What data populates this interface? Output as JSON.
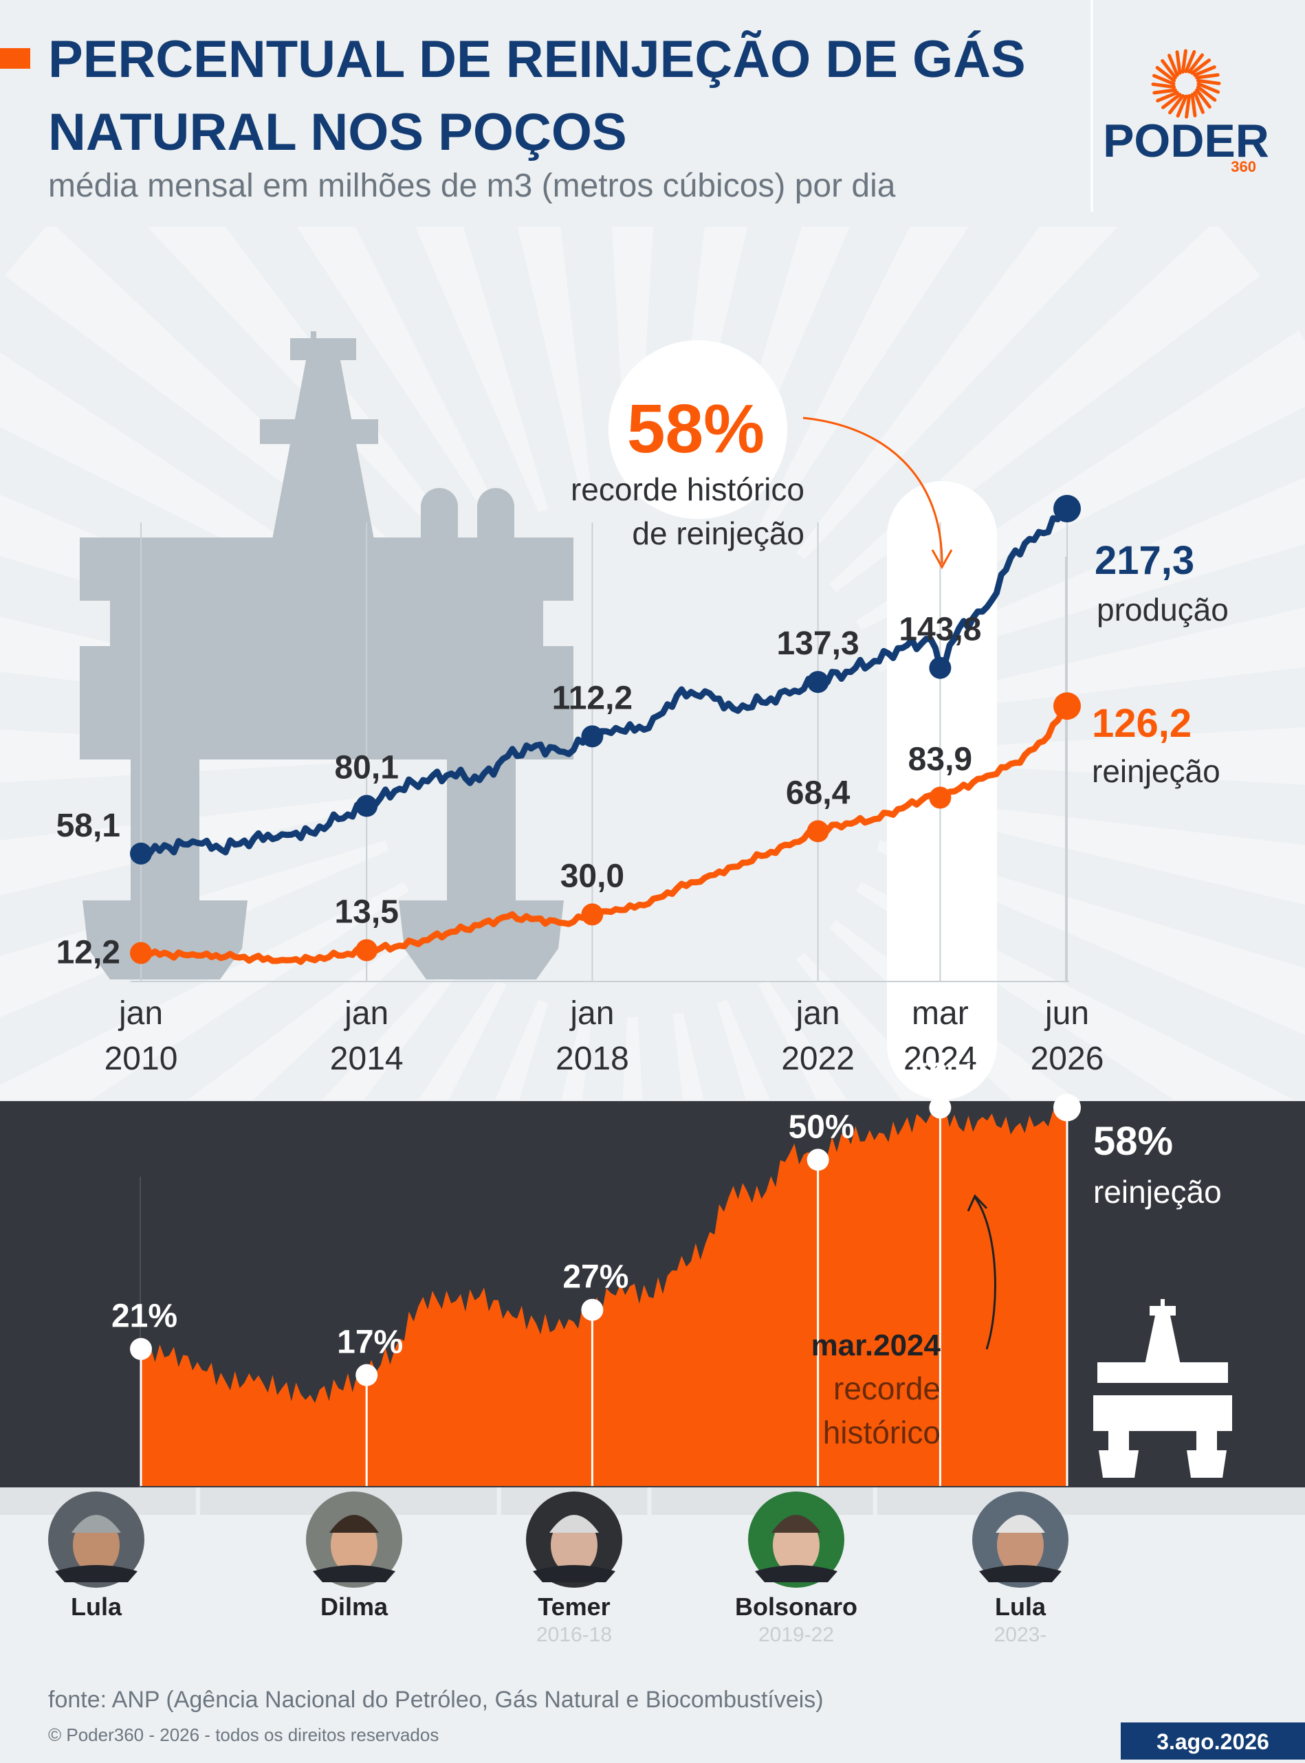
{
  "header": {
    "title_line1": "PERCENTUAL DE REINJEÇÃO DE GÁS",
    "title_line2": "NATURAL NOS POÇOS",
    "subtitle": "média mensal em milhões de m3 (metros cúbicos) por dia"
  },
  "logo": {
    "name": "PODER",
    "number": "360"
  },
  "colors": {
    "navy": "#123c73",
    "orange": "#fa5a08",
    "dark_panel": "#34373d",
    "gray_art": "#b7c0c6",
    "text_dark": "#2d2f33",
    "text_gray": "#6c7680"
  },
  "callout": {
    "value": "58%",
    "line1": "recorde histórico",
    "line2": "de reinjeção"
  },
  "chart_data": [
    {
      "type": "line",
      "title": "média mensal em milhões de m3 (metros cúbicos) por dia",
      "x_ticks": [
        {
          "month": "jan",
          "year": "2010"
        },
        {
          "month": "jan",
          "year": "2014"
        },
        {
          "month": "jan",
          "year": "2018"
        },
        {
          "month": "jan",
          "year": "2022"
        },
        {
          "month": "mar",
          "year": "2024"
        },
        {
          "month": "jun",
          "year": "2026"
        }
      ],
      "x_range": [
        "2010-01",
        "2026-06"
      ],
      "ylim": [
        0,
        230
      ],
      "grid": "vertical lines at labeled dates",
      "series": [
        {
          "name": "produção",
          "color": "#123c73",
          "labeled_points": [
            {
              "x": "2010-01",
              "y": 58.1,
              "label": "58,1"
            },
            {
              "x": "2014-01",
              "y": 80.1,
              "label": "80,1"
            },
            {
              "x": "2018-01",
              "y": 112.2,
              "label": "112,2"
            },
            {
              "x": "2022-01",
              "y": 137.3,
              "label": "137,3"
            },
            {
              "x": "2024-03",
              "y": 143.8,
              "label": "143,8"
            },
            {
              "x": "2026-06",
              "y": 217.3,
              "label": "217,3"
            }
          ],
          "approx_monthly": [
            {
              "x": "2010-01",
              "y": 58.1
            },
            {
              "x": "2010-07",
              "y": 61
            },
            {
              "x": "2011-01",
              "y": 63
            },
            {
              "x": "2011-06",
              "y": 60
            },
            {
              "x": "2012-01",
              "y": 65
            },
            {
              "x": "2012-07",
              "y": 67
            },
            {
              "x": "2013-01",
              "y": 68
            },
            {
              "x": "2013-07",
              "y": 74
            },
            {
              "x": "2014-01",
              "y": 80.1
            },
            {
              "x": "2014-07",
              "y": 87
            },
            {
              "x": "2015-01",
              "y": 92
            },
            {
              "x": "2015-07",
              "y": 95
            },
            {
              "x": "2016-01",
              "y": 92
            },
            {
              "x": "2016-07",
              "y": 103
            },
            {
              "x": "2017-01",
              "y": 108
            },
            {
              "x": "2017-07",
              "y": 105
            },
            {
              "x": "2018-01",
              "y": 112.2
            },
            {
              "x": "2018-07",
              "y": 115
            },
            {
              "x": "2019-01",
              "y": 116
            },
            {
              "x": "2019-07",
              "y": 131
            },
            {
              "x": "2020-01",
              "y": 133
            },
            {
              "x": "2020-07",
              "y": 125
            },
            {
              "x": "2021-01",
              "y": 128
            },
            {
              "x": "2021-07",
              "y": 132
            },
            {
              "x": "2022-01",
              "y": 137.3
            },
            {
              "x": "2022-07",
              "y": 142
            },
            {
              "x": "2023-01",
              "y": 147
            },
            {
              "x": "2023-07",
              "y": 153
            },
            {
              "x": "2024-01",
              "y": 157
            },
            {
              "x": "2024-03",
              "y": 143.8
            },
            {
              "x": "2024-07",
              "y": 162
            },
            {
              "x": "2025-01",
              "y": 172
            },
            {
              "x": "2025-07",
              "y": 198
            },
            {
              "x": "2026-01",
              "y": 206
            },
            {
              "x": "2026-06",
              "y": 217.3
            }
          ]
        },
        {
          "name": "reinjeção",
          "color": "#fa5a08",
          "labeled_points": [
            {
              "x": "2010-01",
              "y": 12.2,
              "label": "12,2"
            },
            {
              "x": "2014-01",
              "y": 13.5,
              "label": "13,5"
            },
            {
              "x": "2018-01",
              "y": 30.0,
              "label": "30,0"
            },
            {
              "x": "2022-01",
              "y": 68.4,
              "label": "68,4"
            },
            {
              "x": "2024-03",
              "y": 83.9,
              "label": "83,9"
            },
            {
              "x": "2026-06",
              "y": 126.2,
              "label": "126,2"
            }
          ],
          "approx_monthly": [
            {
              "x": "2010-01",
              "y": 12.2
            },
            {
              "x": "2010-07",
              "y": 11.5
            },
            {
              "x": "2011-01",
              "y": 11
            },
            {
              "x": "2011-07",
              "y": 10.5
            },
            {
              "x": "2012-01",
              "y": 10
            },
            {
              "x": "2012-07",
              "y": 9
            },
            {
              "x": "2013-01",
              "y": 9.5
            },
            {
              "x": "2013-07",
              "y": 11
            },
            {
              "x": "2014-01",
              "y": 13.5
            },
            {
              "x": "2014-07",
              "y": 15
            },
            {
              "x": "2015-01",
              "y": 18
            },
            {
              "x": "2015-07",
              "y": 22
            },
            {
              "x": "2016-01",
              "y": 25
            },
            {
              "x": "2016-07",
              "y": 29
            },
            {
              "x": "2017-01",
              "y": 28
            },
            {
              "x": "2017-07",
              "y": 26
            },
            {
              "x": "2018-01",
              "y": 30.0
            },
            {
              "x": "2018-07",
              "y": 32
            },
            {
              "x": "2019-01",
              "y": 35
            },
            {
              "x": "2019-07",
              "y": 42
            },
            {
              "x": "2020-01",
              "y": 47
            },
            {
              "x": "2020-07",
              "y": 52
            },
            {
              "x": "2021-01",
              "y": 57
            },
            {
              "x": "2021-07",
              "y": 62
            },
            {
              "x": "2022-01",
              "y": 68.4
            },
            {
              "x": "2022-07",
              "y": 72
            },
            {
              "x": "2023-01",
              "y": 74
            },
            {
              "x": "2023-07",
              "y": 79
            },
            {
              "x": "2024-01",
              "y": 85
            },
            {
              "x": "2024-03",
              "y": 83.9
            },
            {
              "x": "2024-07",
              "y": 88
            },
            {
              "x": "2025-01",
              "y": 94
            },
            {
              "x": "2025-07",
              "y": 100
            },
            {
              "x": "2026-01",
              "y": 110
            },
            {
              "x": "2026-06",
              "y": 126.2
            }
          ]
        }
      ],
      "end_labels": {
        "produção": {
          "value": "217,3",
          "name": "produção"
        },
        "reinjeção": {
          "value": "126,2",
          "name": "reinjeção"
        }
      },
      "highlight": "mar 2024"
    },
    {
      "type": "area",
      "series_name": "reinjeção",
      "unit": "%",
      "ylim": [
        0,
        65
      ],
      "labeled_points": [
        {
          "x": "2010-01",
          "y": 21,
          "label": "21%"
        },
        {
          "x": "2014-01",
          "y": 17,
          "label": "17%"
        },
        {
          "x": "2018-01",
          "y": 27,
          "label": "27%"
        },
        {
          "x": "2022-01",
          "y": 50,
          "label": "50%"
        },
        {
          "x": "2024-03",
          "y": 58,
          "label": "58%"
        },
        {
          "x": "2026-06",
          "y": 58,
          "label": "58%"
        }
      ],
      "approx_monthly": [
        {
          "x": "2010-01",
          "y": 21
        },
        {
          "x": "2010-07",
          "y": 20
        },
        {
          "x": "2011-01",
          "y": 19
        },
        {
          "x": "2011-07",
          "y": 16
        },
        {
          "x": "2012-01",
          "y": 16
        },
        {
          "x": "2012-07",
          "y": 15
        },
        {
          "x": "2013-01",
          "y": 14
        },
        {
          "x": "2013-07",
          "y": 15
        },
        {
          "x": "2014-01",
          "y": 17
        },
        {
          "x": "2014-07",
          "y": 21
        },
        {
          "x": "2015-01",
          "y": 29
        },
        {
          "x": "2015-07",
          "y": 28
        },
        {
          "x": "2016-01",
          "y": 29
        },
        {
          "x": "2016-07",
          "y": 27
        },
        {
          "x": "2017-01",
          "y": 25
        },
        {
          "x": "2017-07",
          "y": 24
        },
        {
          "x": "2018-01",
          "y": 27
        },
        {
          "x": "2018-07",
          "y": 31
        },
        {
          "x": "2019-01",
          "y": 29
        },
        {
          "x": "2019-07",
          "y": 33
        },
        {
          "x": "2020-01",
          "y": 37
        },
        {
          "x": "2020-07",
          "y": 46
        },
        {
          "x": "2021-01",
          "y": 44
        },
        {
          "x": "2021-07",
          "y": 51
        },
        {
          "x": "2022-01",
          "y": 50
        },
        {
          "x": "2022-07",
          "y": 54
        },
        {
          "x": "2023-01",
          "y": 53
        },
        {
          "x": "2023-07",
          "y": 55
        },
        {
          "x": "2024-01",
          "y": 57
        },
        {
          "x": "2024-03",
          "y": 58
        },
        {
          "x": "2024-07",
          "y": 55
        },
        {
          "x": "2025-01",
          "y": 56
        },
        {
          "x": "2025-07",
          "y": 55
        },
        {
          "x": "2026-01",
          "y": 56
        },
        {
          "x": "2026-06",
          "y": 58
        }
      ],
      "end_label": {
        "value": "58%",
        "name": "reinjeção"
      },
      "annotation": {
        "title": "mar.2024",
        "line1": "recorde",
        "line2": "histórico"
      }
    }
  ],
  "presidents": [
    {
      "name": "Lula",
      "term": "",
      "start": "2010-01"
    },
    {
      "name": "Dilma",
      "term": "",
      "start": "2011-01"
    },
    {
      "name": "Temer",
      "term": "2016-18",
      "start": "2016-05"
    },
    {
      "name": "Bolsonaro",
      "term": "2019-22",
      "start": "2019-01"
    },
    {
      "name": "Lula",
      "term": "2023-",
      "start": "2023-01"
    }
  ],
  "footer": {
    "source": "fonte: ANP (Agência Nacional do Petróleo, Gás Natural e Biocombustíveis)",
    "copyright": "© Poder360 - 2026 - todos os direitos reservados",
    "date": "3.ago.2026"
  }
}
